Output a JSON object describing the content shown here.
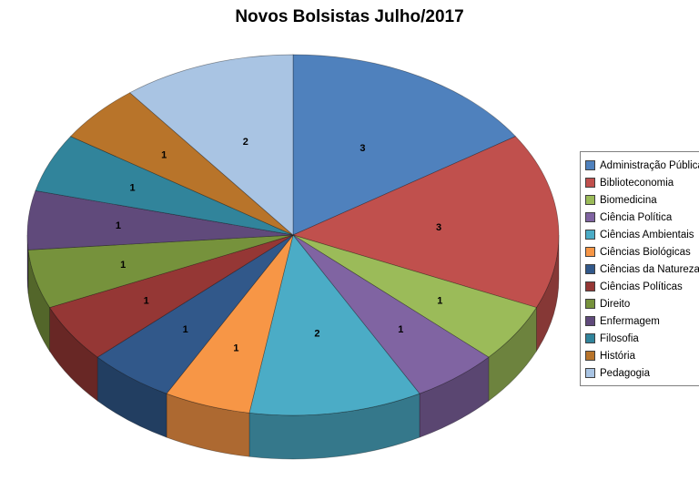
{
  "chart": {
    "title": "Novos Bolsistas Julho/2017"
  },
  "chart_data": {
    "type": "pie",
    "style": "3d",
    "title": "Novos Bolsistas Julho/2017",
    "direction": "clockwise",
    "start_angle": "12 o'clock",
    "legend_position": "right",
    "grid": false,
    "total": 19,
    "categories": [
      "Administração Pública",
      "Biblioteconomia",
      "Biomedicina",
      "Ciência Política",
      "Ciências Ambientais",
      "Ciências Biológicas",
      "Ciências da Natureza",
      "Ciências Políticas",
      "Direito",
      "Enfermagem",
      "Filosofia",
      "História",
      "Pedagogia"
    ],
    "values": [
      3,
      3,
      1,
      1,
      2,
      1,
      1,
      1,
      1,
      1,
      1,
      1,
      2
    ],
    "colors": [
      "#4F81BD",
      "#C0504D",
      "#9BBB59",
      "#8064A2",
      "#4BACC6",
      "#F79646",
      "#31588A",
      "#953735",
      "#76923C",
      "#604A7B",
      "#31849B",
      "#B8742A",
      "#A9C4E3"
    ]
  }
}
